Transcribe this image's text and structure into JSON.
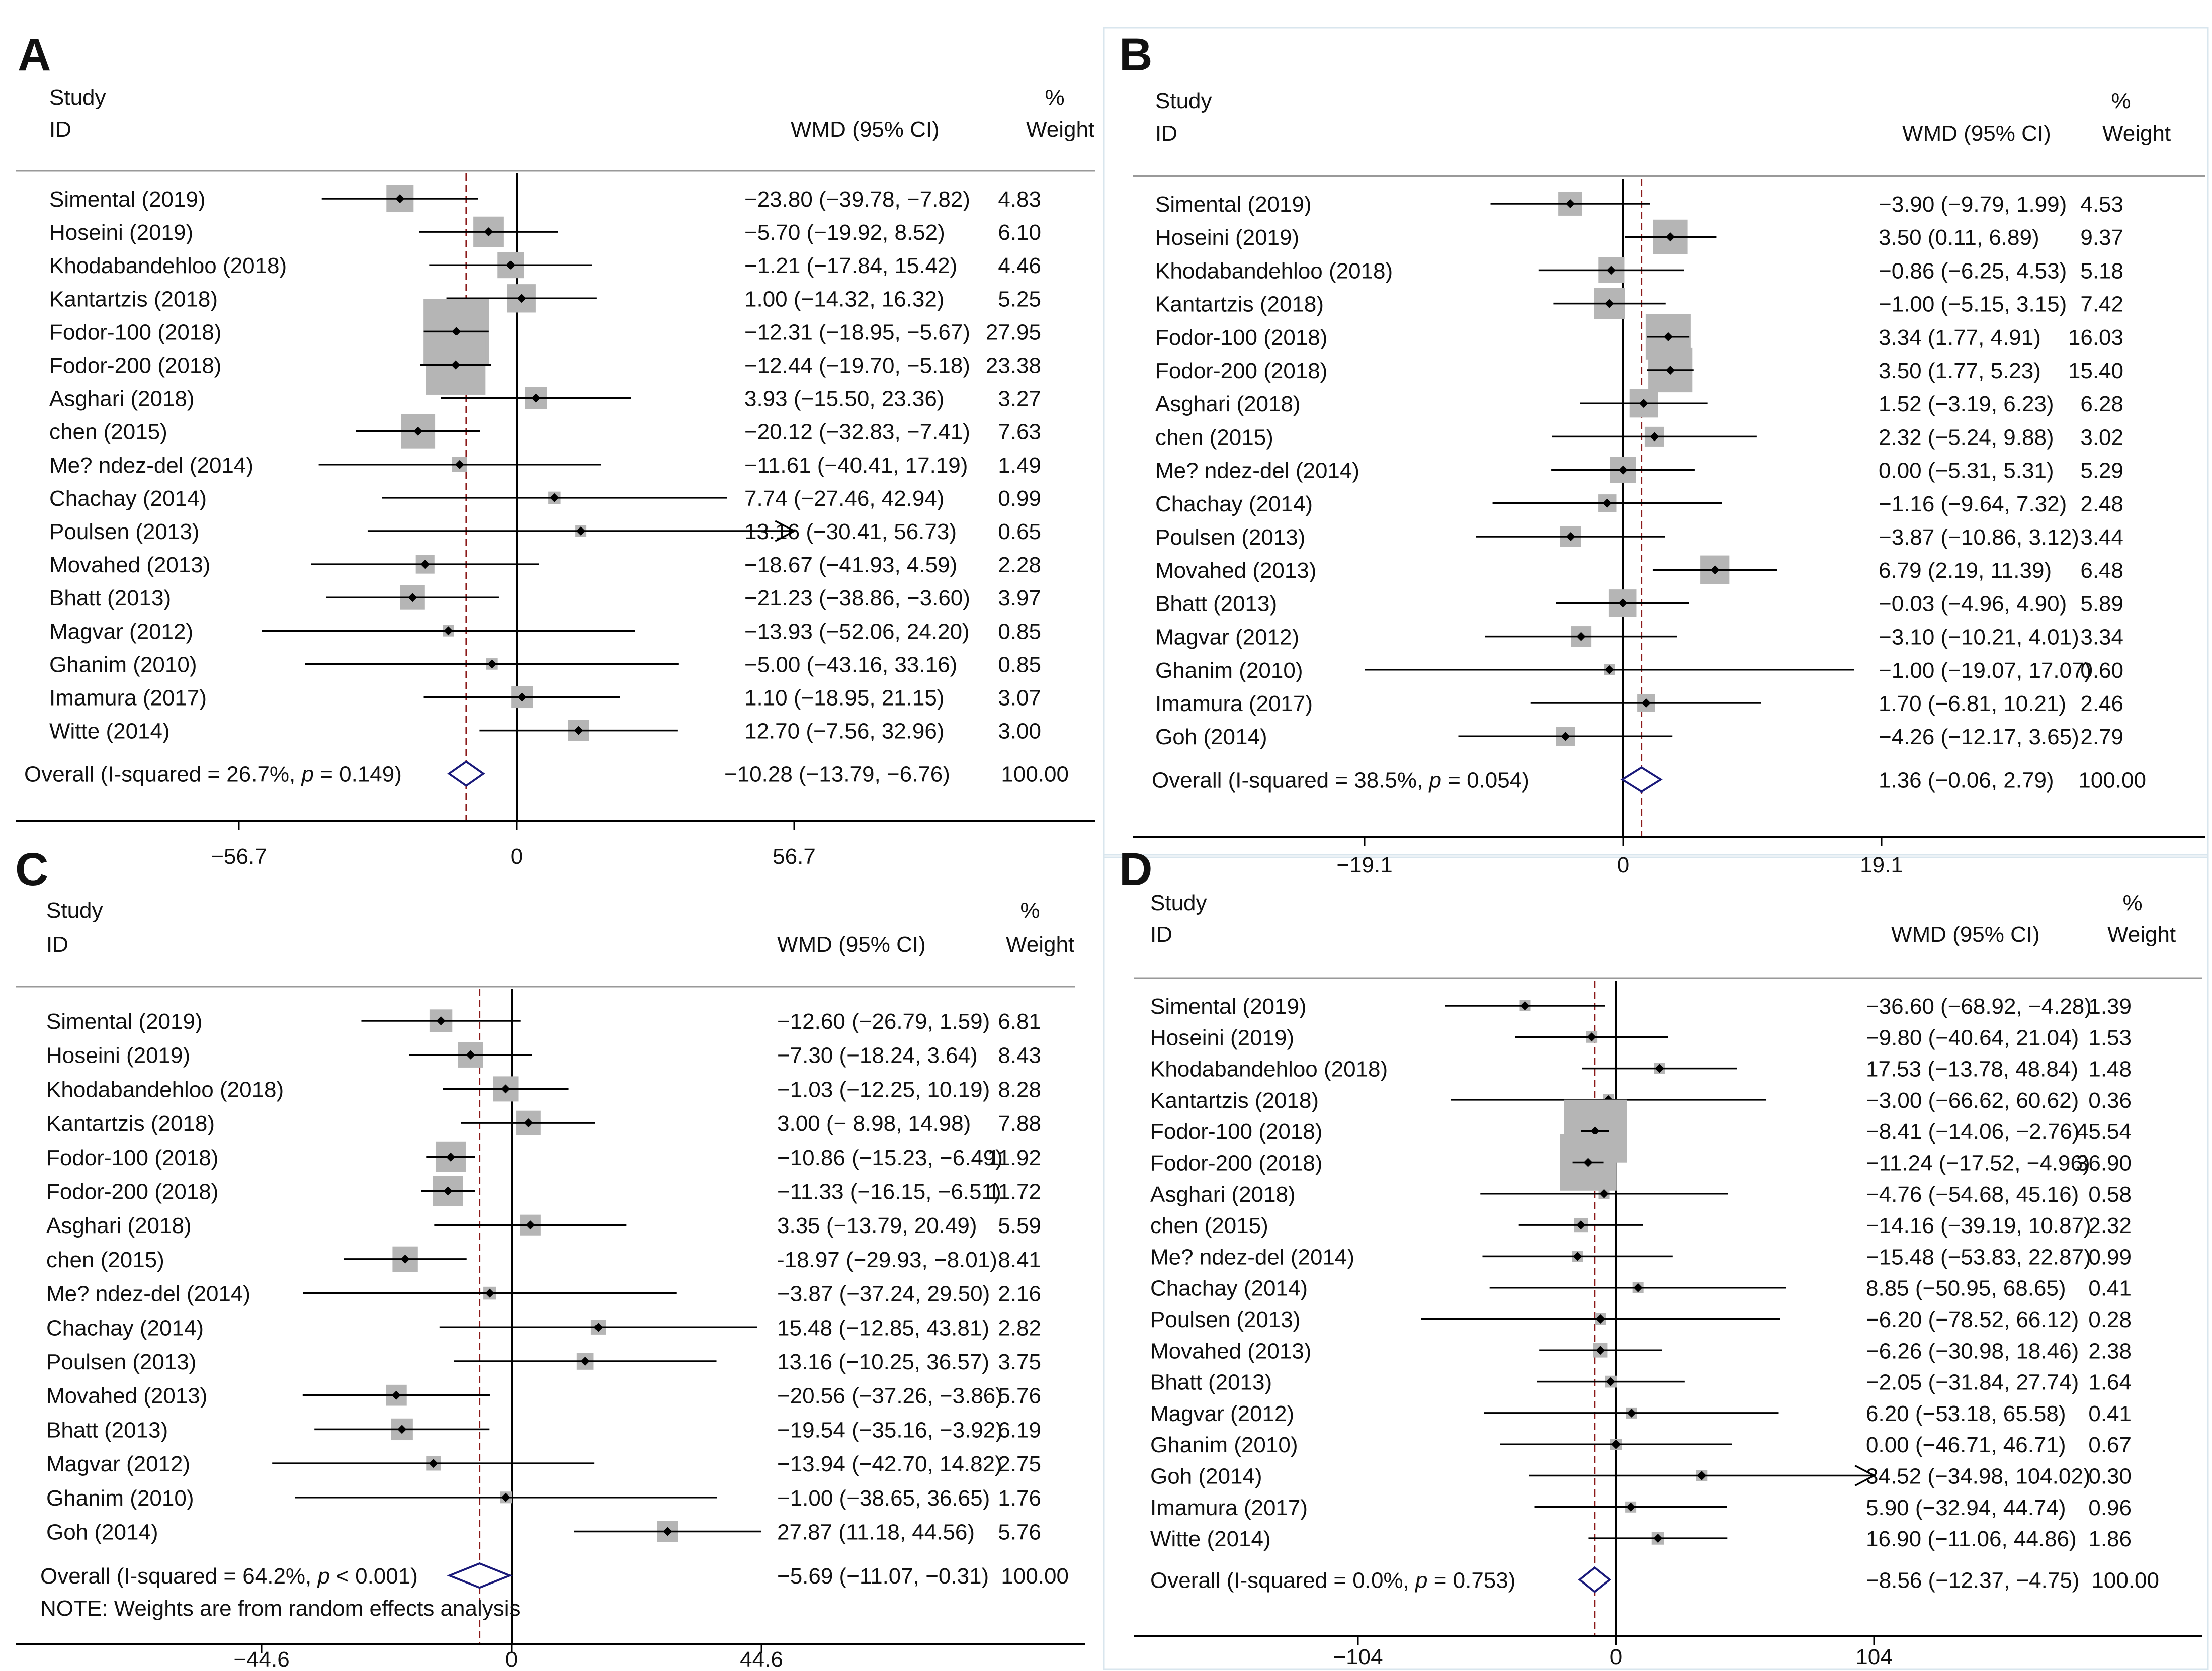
{
  "figure": {
    "header": {
      "study": "Study",
      "id": "ID",
      "effect": "WMD (95% CI)",
      "pct": "%",
      "weight": "Weight"
    },
    "colors": {
      "box": "#b5b5b5",
      "ci": "#000000",
      "diamond": "#1a1a7a",
      "overall_line": "#8b1a1a"
    }
  },
  "chart_data": [
    {
      "panel": "A",
      "type": "forest",
      "axis": {
        "ticks": [
          -56.7,
          0,
          56.7
        ],
        "tick_labels": [
          "−56.7",
          "0",
          "56.7"
        ]
      },
      "studies": [
        {
          "name": "Simental (2019)",
          "est": -23.8,
          "lo": -39.78,
          "hi": -7.82,
          "w": 4.83,
          "ci": "−23.80 (−39.78, −7.82)",
          "wt": "4.83"
        },
        {
          "name": "Hoseini (2019)",
          "est": -5.7,
          "lo": -19.92,
          "hi": 8.52,
          "w": 6.1,
          "ci": "−5.70 (−19.92, 8.52)",
          "wt": "6.10"
        },
        {
          "name": "Khodabandehloo (2018)",
          "est": -1.21,
          "lo": -17.84,
          "hi": 15.42,
          "w": 4.46,
          "ci": "−1.21 (−17.84, 15.42)",
          "wt": "4.46"
        },
        {
          "name": "Kantartzis (2018)",
          "est": 1.0,
          "lo": -14.32,
          "hi": 16.32,
          "w": 5.25,
          "ci": "1.00 (−14.32, 16.32)",
          "wt": "5.25"
        },
        {
          "name": "Fodor-100 (2018)",
          "est": -12.31,
          "lo": -18.95,
          "hi": -5.67,
          "w": 27.95,
          "ci": "−12.31 (−18.95, −5.67)",
          "wt": "27.95"
        },
        {
          "name": "Fodor-200 (2018)",
          "est": -12.44,
          "lo": -19.7,
          "hi": -5.18,
          "w": 23.38,
          "ci": "−12.44 (−19.70, −5.18)",
          "wt": "23.38"
        },
        {
          "name": "Asghari (2018)",
          "est": 3.93,
          "lo": -15.5,
          "hi": 23.36,
          "w": 3.27,
          "ci": "3.93 (−15.50, 23.36)",
          "wt": "3.27"
        },
        {
          "name": "chen (2015)",
          "est": -20.12,
          "lo": -32.83,
          "hi": -7.41,
          "w": 7.63,
          "ci": "−20.12 (−32.83, −7.41)",
          "wt": "7.63"
        },
        {
          "name": "Me? ndez-del (2014)",
          "est": -11.61,
          "lo": -40.41,
          "hi": 17.19,
          "w": 1.49,
          "ci": "−11.61 (−40.41, 17.19)",
          "wt": "1.49"
        },
        {
          "name": "Chachay (2014)",
          "est": 7.74,
          "lo": -27.46,
          "hi": 42.94,
          "w": 0.99,
          "ci": "7.74 (−27.46, 42.94)",
          "wt": "0.99"
        },
        {
          "name": "Poulsen (2013)",
          "est": 13.16,
          "lo": -30.41,
          "hi": 56.73,
          "w": 0.65,
          "ci": "13.16 (−30.41, 56.73)",
          "wt": "0.65",
          "arrow": true
        },
        {
          "name": "Movahed (2013)",
          "est": -18.67,
          "lo": -41.93,
          "hi": 4.59,
          "w": 2.28,
          "ci": "−18.67 (−41.93, 4.59)",
          "wt": "2.28"
        },
        {
          "name": "Bhatt (2013)",
          "est": -21.23,
          "lo": -38.86,
          "hi": -3.6,
          "w": 3.97,
          "ci": "−21.23 (−38.86, −3.60)",
          "wt": "3.97"
        },
        {
          "name": "Magvar (2012)",
          "est": -13.93,
          "lo": -52.06,
          "hi": 24.2,
          "w": 0.85,
          "ci": "−13.93 (−52.06, 24.20)",
          "wt": "0.85"
        },
        {
          "name": "Ghanim (2010)",
          "est": -5.0,
          "lo": -43.16,
          "hi": 33.16,
          "w": 0.85,
          "ci": "−5.00 (−43.16, 33.16)",
          "wt": "0.85"
        },
        {
          "name": "Imamura (2017)",
          "est": 1.1,
          "lo": -18.95,
          "hi": 21.15,
          "w": 3.07,
          "ci": "1.10 (−18.95, 21.15)",
          "wt": "3.07"
        },
        {
          "name": "Witte (2014)",
          "est": 12.7,
          "lo": -7.56,
          "hi": 32.96,
          "w": 3.0,
          "ci": "12.70 (−7.56, 32.96)",
          "wt": "3.00"
        }
      ],
      "overall": {
        "est": -10.28,
        "lo": -13.79,
        "hi": -6.76,
        "label_pre": "Overall  (I-squared = 26.7%, ",
        "label_p": "p",
        "label_post": " = 0.149)",
        "ci": "−10.28 (−13.79, −6.76)",
        "wt": "100.00"
      }
    },
    {
      "panel": "B",
      "type": "forest",
      "axis": {
        "ticks": [
          -19.1,
          0,
          19.1
        ],
        "tick_labels": [
          "−19.1",
          "0",
          "19.1"
        ]
      },
      "studies": [
        {
          "name": "Simental (2019)",
          "est": -3.9,
          "lo": -9.79,
          "hi": 1.99,
          "w": 4.53,
          "ci": "−3.90 (−9.79, 1.99)",
          "wt": "4.53"
        },
        {
          "name": "Hoseini (2019)",
          "est": 3.5,
          "lo": 0.11,
          "hi": 6.89,
          "w": 9.37,
          "ci": "3.50 (0.11, 6.89)",
          "wt": "9.37"
        },
        {
          "name": "Khodabandehloo (2018)",
          "est": -0.86,
          "lo": -6.25,
          "hi": 4.53,
          "w": 5.18,
          "ci": "−0.86 (−6.25, 4.53)",
          "wt": "5.18"
        },
        {
          "name": "Kantartzis (2018)",
          "est": -1.0,
          "lo": -5.15,
          "hi": 3.15,
          "w": 7.42,
          "ci": "−1.00 (−5.15, 3.15)",
          "wt": "7.42"
        },
        {
          "name": "Fodor-100 (2018)",
          "est": 3.34,
          "lo": 1.77,
          "hi": 4.91,
          "w": 16.03,
          "ci": "3.34 (1.77, 4.91)",
          "wt": "16.03"
        },
        {
          "name": "Fodor-200 (2018)",
          "est": 3.5,
          "lo": 1.77,
          "hi": 5.23,
          "w": 15.4,
          "ci": "3.50 (1.77, 5.23)",
          "wt": "15.40"
        },
        {
          "name": "Asghari (2018)",
          "est": 1.52,
          "lo": -3.19,
          "hi": 6.23,
          "w": 6.28,
          "ci": "1.52 (−3.19, 6.23)",
          "wt": "6.28"
        },
        {
          "name": "chen (2015)",
          "est": 2.32,
          "lo": -5.24,
          "hi": 9.88,
          "w": 3.02,
          "ci": "2.32 (−5.24, 9.88)",
          "wt": "3.02"
        },
        {
          "name": "Me? ndez-del (2014)",
          "est": 0.0,
          "lo": -5.31,
          "hi": 5.31,
          "w": 5.29,
          "ci": "0.00 (−5.31, 5.31)",
          "wt": "5.29"
        },
        {
          "name": "Chachay (2014)",
          "est": -1.16,
          "lo": -9.64,
          "hi": 7.32,
          "w": 2.48,
          "ci": "−1.16 (−9.64, 7.32)",
          "wt": "2.48"
        },
        {
          "name": "Poulsen (2013)",
          "est": -3.87,
          "lo": -10.86,
          "hi": 3.12,
          "w": 3.44,
          "ci": "−3.87 (−10.86, 3.12)",
          "wt": "3.44"
        },
        {
          "name": "Movahed (2013)",
          "est": 6.79,
          "lo": 2.19,
          "hi": 11.39,
          "w": 6.48,
          "ci": "6.79 (2.19, 11.39)",
          "wt": "6.48"
        },
        {
          "name": "Bhatt (2013)",
          "est": -0.03,
          "lo": -4.96,
          "hi": 4.9,
          "w": 5.89,
          "ci": "−0.03 (−4.96, 4.90)",
          "wt": "5.89"
        },
        {
          "name": "Magvar (2012)",
          "est": -3.1,
          "lo": -10.21,
          "hi": 4.01,
          "w": 3.34,
          "ci": "−3.10 (−10.21, 4.01)",
          "wt": "3.34"
        },
        {
          "name": "Ghanim (2010)",
          "est": -1.0,
          "lo": -19.07,
          "hi": 17.07,
          "w": 0.6,
          "ci": "−1.00 (−19.07, 17.07)",
          "wt": "0.60"
        },
        {
          "name": "Imamura (2017)",
          "est": 1.7,
          "lo": -6.81,
          "hi": 10.21,
          "w": 2.46,
          "ci": "1.70 (−6.81, 10.21)",
          "wt": "2.46"
        },
        {
          "name": "Goh (2014)",
          "est": -4.26,
          "lo": -12.17,
          "hi": 3.65,
          "w": 2.79,
          "ci": "−4.26 (−12.17, 3.65)",
          "wt": "2.79"
        }
      ],
      "overall": {
        "est": 1.36,
        "lo": -0.06,
        "hi": 2.79,
        "label_pre": "Overall  (I-squared = 38.5%, ",
        "label_p": "p",
        "label_post": " = 0.054)",
        "ci": "1.36 (−0.06, 2.79)",
        "wt": "100.00"
      }
    },
    {
      "panel": "C",
      "type": "forest",
      "axis": {
        "ticks": [
          -44.6,
          0,
          44.6
        ],
        "tick_labels": [
          "−44.6",
          "0",
          "44.6"
        ]
      },
      "studies": [
        {
          "name": "Simental (2019)",
          "est": -12.6,
          "lo": -26.79,
          "hi": 1.59,
          "w": 6.81,
          "ci": "−12.60 (−26.79, 1.59)",
          "wt": "6.81"
        },
        {
          "name": "Hoseini (2019)",
          "est": -7.3,
          "lo": -18.24,
          "hi": 3.64,
          "w": 8.43,
          "ci": "−7.30 (−18.24, 3.64)",
          "wt": "8.43"
        },
        {
          "name": "Khodabandehloo (2018)",
          "est": -1.03,
          "lo": -12.25,
          "hi": 10.19,
          "w": 8.28,
          "ci": "−1.03 (−12.25, 10.19)",
          "wt": "8.28"
        },
        {
          "name": "Kantartzis (2018)",
          "est": 3.0,
          "lo": -8.98,
          "hi": 14.98,
          "w": 7.88,
          "ci": "3.00 (− 8.98, 14.98)",
          "wt": "7.88"
        },
        {
          "name": "Fodor-100 (2018)",
          "est": -10.86,
          "lo": -15.23,
          "hi": -6.49,
          "w": 11.92,
          "ci": "−10.86 (−15.23, −6.49)",
          "wt": "11.92"
        },
        {
          "name": "Fodor-200 (2018)",
          "est": -11.33,
          "lo": -16.15,
          "hi": -6.51,
          "w": 11.72,
          "ci": "−11.33 (−16.15, −6.51)",
          "wt": "11.72"
        },
        {
          "name": "Asghari (2018)",
          "est": 3.35,
          "lo": -13.79,
          "hi": 20.49,
          "w": 5.59,
          "ci": "3.35 (−13.79, 20.49)",
          "wt": "5.59"
        },
        {
          "name": "chen (2015)",
          "est": -18.97,
          "lo": -29.93,
          "hi": -8.01,
          "w": 8.41,
          "ci": "-18.97 (−29.93, −8.01)",
          "wt": "8.41"
        },
        {
          "name": "Me? ndez-del (2014)",
          "est": -3.87,
          "lo": -37.24,
          "hi": 29.5,
          "w": 2.16,
          "ci": "−3.87 (−37.24, 29.50)",
          "wt": "2.16"
        },
        {
          "name": "Chachay (2014)",
          "est": 15.48,
          "lo": -12.85,
          "hi": 43.81,
          "w": 2.82,
          "ci": "15.48 (−12.85, 43.81)",
          "wt": "2.82"
        },
        {
          "name": "Poulsen (2013)",
          "est": 13.16,
          "lo": -10.25,
          "hi": 36.57,
          "w": 3.75,
          "ci": "13.16 (−10.25, 36.57)",
          "wt": "3.75"
        },
        {
          "name": "Movahed (2013)",
          "est": -20.56,
          "lo": -37.26,
          "hi": -3.86,
          "w": 5.76,
          "ci": "−20.56 (−37.26, −3.86)",
          "wt": "5.76"
        },
        {
          "name": "Bhatt (2013)",
          "est": -19.54,
          "lo": -35.16,
          "hi": -3.92,
          "w": 6.19,
          "ci": "−19.54 (−35.16, −3.92)",
          "wt": "6.19"
        },
        {
          "name": "Magvar (2012)",
          "est": -13.94,
          "lo": -42.7,
          "hi": 14.82,
          "w": 2.75,
          "ci": "−13.94 (−42.70, 14.82)",
          "wt": "2.75"
        },
        {
          "name": "Ghanim (2010)",
          "est": -1.0,
          "lo": -38.65,
          "hi": 36.65,
          "w": 1.76,
          "ci": "−1.00 (−38.65, 36.65)",
          "wt": "1.76"
        },
        {
          "name": "Goh (2014)",
          "est": 27.87,
          "lo": 11.18,
          "hi": 44.56,
          "w": 5.76,
          "ci": "27.87 (11.18, 44.56)",
          "wt": "5.76"
        }
      ],
      "overall": {
        "est": -5.69,
        "lo": -11.07,
        "hi": -0.31,
        "label_pre": "Overall  (I-squared = 64.2%, ",
        "label_p": "p",
        "label_post": "  < 0.001)",
        "ci": "−5.69 (−11.07, −0.31)",
        "wt": "100.00"
      },
      "note": "NOTE: Weights are from random effects analysis"
    },
    {
      "panel": "D",
      "type": "forest",
      "axis": {
        "ticks": [
          -104,
          0,
          104
        ],
        "tick_labels": [
          "−104",
          "0",
          "104"
        ]
      },
      "studies": [
        {
          "name": "Simental (2019)",
          "est": -36.6,
          "lo": -68.92,
          "hi": -4.28,
          "w": 1.39,
          "ci": "−36.60 (−68.92, −4.28)",
          "wt": "1.39"
        },
        {
          "name": "Hoseini (2019)",
          "est": -9.8,
          "lo": -40.64,
          "hi": 21.04,
          "w": 1.53,
          "ci": "−9.80 (−40.64, 21.04)",
          "wt": "1.53"
        },
        {
          "name": "Khodabandehloo (2018)",
          "est": 17.53,
          "lo": -13.78,
          "hi": 48.84,
          "w": 1.48,
          "ci": "17.53 (−13.78, 48.84)",
          "wt": "1.48"
        },
        {
          "name": "Kantartzis (2018)",
          "est": -3.0,
          "lo": -66.62,
          "hi": 60.62,
          "w": 0.36,
          "ci": "−3.00 (−66.62, 60.62)",
          "wt": "0.36"
        },
        {
          "name": "Fodor-100 (2018)",
          "est": -8.41,
          "lo": -14.06,
          "hi": -2.76,
          "w": 45.54,
          "ci": "−8.41 (−14.06, −2.76)",
          "wt": "45.54"
        },
        {
          "name": "Fodor-200 (2018)",
          "est": -11.24,
          "lo": -17.52,
          "hi": -4.96,
          "w": 36.9,
          "ci": "−11.24 (−17.52, −4.96)",
          "wt": "36.90"
        },
        {
          "name": "Asghari (2018)",
          "est": -4.76,
          "lo": -54.68,
          "hi": 45.16,
          "w": 0.58,
          "ci": "−4.76 (−54.68, 45.16)",
          "wt": "0.58"
        },
        {
          "name": "chen (2015)",
          "est": -14.16,
          "lo": -39.19,
          "hi": 10.87,
          "w": 2.32,
          "ci": "−14.16 (−39.19, 10.87)",
          "wt": "2.32"
        },
        {
          "name": "Me? ndez-del (2014)",
          "est": -15.48,
          "lo": -53.83,
          "hi": 22.87,
          "w": 0.99,
          "ci": "−15.48 (−53.83, 22.87)",
          "wt": "0.99"
        },
        {
          "name": "Chachay (2014)",
          "est": 8.85,
          "lo": -50.95,
          "hi": 68.65,
          "w": 0.41,
          "ci": "8.85 (−50.95, 68.65)",
          "wt": "0.41"
        },
        {
          "name": "Poulsen (2013)",
          "est": -6.2,
          "lo": -78.52,
          "hi": 66.12,
          "w": 0.28,
          "ci": "−6.20 (−78.52, 66.12)",
          "wt": "0.28"
        },
        {
          "name": "Movahed (2013)",
          "est": -6.26,
          "lo": -30.98,
          "hi": 18.46,
          "w": 2.38,
          "ci": "−6.26 (−30.98, 18.46)",
          "wt": "2.38"
        },
        {
          "name": "Bhatt (2013)",
          "est": -2.05,
          "lo": -31.84,
          "hi": 27.74,
          "w": 1.64,
          "ci": "−2.05 (−31.84, 27.74)",
          "wt": "1.64"
        },
        {
          "name": "Magvar (2012)",
          "est": 6.2,
          "lo": -53.18,
          "hi": 65.58,
          "w": 0.41,
          "ci": "6.20 (−53.18, 65.58)",
          "wt": "0.41"
        },
        {
          "name": "Ghanim (2010)",
          "est": 0.0,
          "lo": -46.71,
          "hi": 46.71,
          "w": 0.67,
          "ci": "0.00 (−46.71, 46.71)",
          "wt": "0.67"
        },
        {
          "name": "Goh (2014)",
          "est": 34.52,
          "lo": -34.98,
          "hi": 104.02,
          "w": 0.3,
          "ci": "34.52 (−34.98, 104.02)",
          "wt": "0.30",
          "arrow": true
        },
        {
          "name": "Imamura (2017)",
          "est": 5.9,
          "lo": -32.94,
          "hi": 44.74,
          "w": 0.96,
          "ci": "5.90 (−32.94, 44.74)",
          "wt": "0.96"
        },
        {
          "name": "Witte (2014)",
          "est": 16.9,
          "lo": -11.06,
          "hi": 44.86,
          "w": 1.86,
          "ci": "16.90 (−11.06, 44.86)",
          "wt": "1.86"
        }
      ],
      "overall": {
        "est": -8.56,
        "lo": -12.37,
        "hi": -4.75,
        "label_pre": "Overall  (I-squared = 0.0%, ",
        "label_p": "p",
        "label_post": " = 0.753)",
        "ci": "−8.56 (−12.37, −4.75)",
        "wt": "100.00"
      }
    }
  ]
}
